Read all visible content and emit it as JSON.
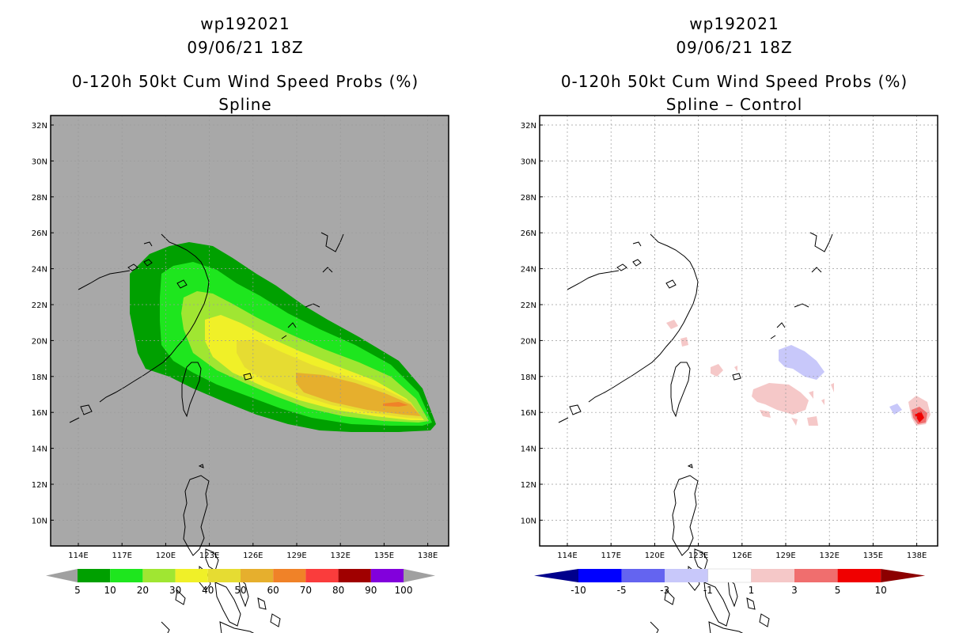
{
  "left_panel": {
    "storm_id": "wp192021",
    "datetime": "09/06/21 18Z",
    "product": "0-120h 50kt Cum Wind Speed Probs (%)",
    "subtitle": "Spline",
    "background_color": "#a8a8a8",
    "legend": {
      "labels": [
        "5",
        "10",
        "20",
        "30",
        "40",
        "50",
        "60",
        "70",
        "80",
        "90",
        "100"
      ],
      "colors": [
        "#00a000",
        "#1ee61e",
        "#a0e632",
        "#f0f028",
        "#e6dc32",
        "#e6af2d",
        "#f08228",
        "#fa3c3c",
        "#a00000",
        "#8200dc"
      ],
      "end_color": "#a0a0a0"
    }
  },
  "right_panel": {
    "storm_id": "wp192021",
    "datetime": "09/06/21 18Z",
    "product": "0-120h 50kt Cum Wind Speed Probs (%)",
    "subtitle": "Spline – Control",
    "background_color": "#ffffff",
    "legend": {
      "labels": [
        "-10",
        "-5",
        "-3",
        "-1",
        "1",
        "3",
        "5",
        "10"
      ],
      "colors": [
        "#0000ff",
        "#6464f0",
        "#c8c8fa",
        "#ffffff",
        "#f5c8c8",
        "#f06e6e",
        "#f00000"
      ],
      "low_end_color": "#00008c",
      "high_end_color": "#8c0000"
    }
  },
  "map": {
    "lat_labels": [
      "32N",
      "30N",
      "28N",
      "26N",
      "24N",
      "22N",
      "20N",
      "18N",
      "16N",
      "14N",
      "12N",
      "10N"
    ],
    "lon_labels": [
      "114E",
      "117E",
      "120E",
      "123E",
      "126E",
      "129E",
      "132E",
      "135E",
      "138E"
    ]
  }
}
